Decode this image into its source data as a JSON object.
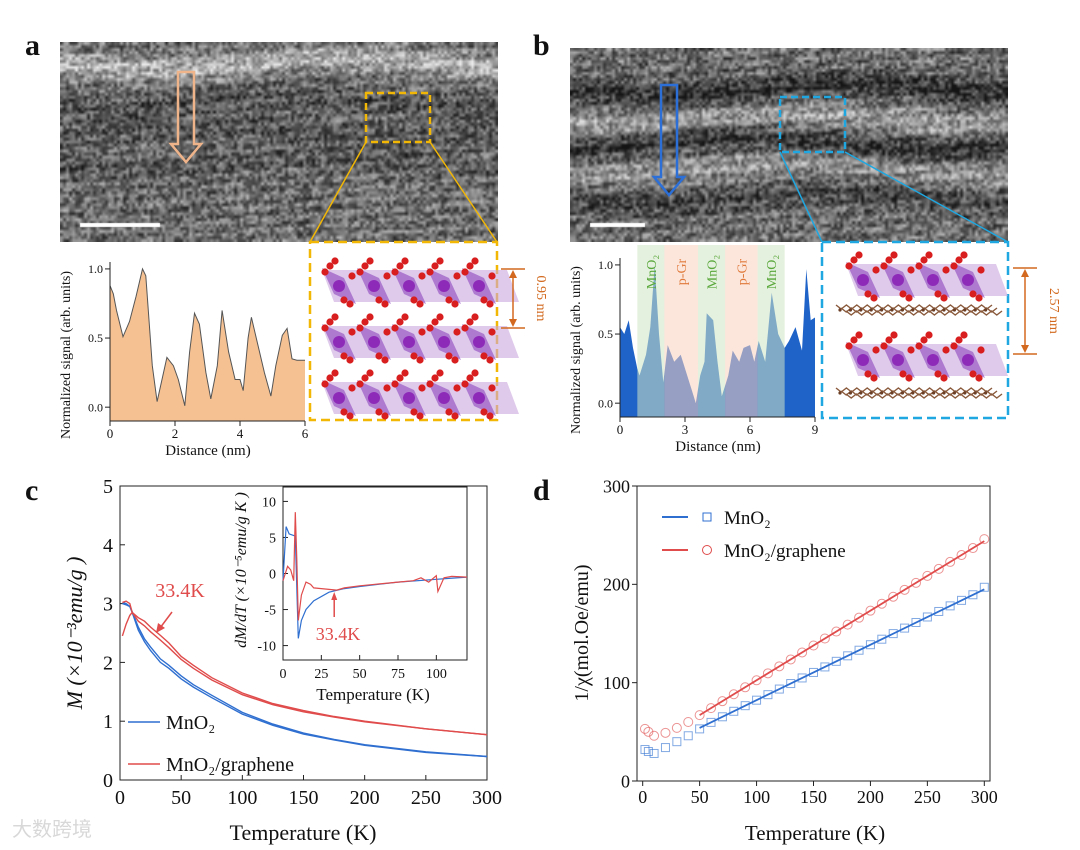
{
  "panels": {
    "a": {
      "label": "a",
      "tem_arrow_color": "#f0b48a",
      "zoom_box_color": "#f2b705",
      "spacing_label": "0.95 nm",
      "spacing_color": "#d2691e"
    },
    "b": {
      "label": "b",
      "tem_arrow_color": "#2c6fd6",
      "zoom_box_color": "#1ea7e0",
      "spacing_label": "2.57 nm",
      "spacing_color": "#d2691e"
    },
    "c": {
      "label": "c"
    },
    "d": {
      "label": "d"
    }
  },
  "colors": {
    "mno2": "#2f6fd0",
    "graphene": "#e04b4b",
    "profile_a_fill": "#f5c193",
    "profile_b_fill": "#1f63c8",
    "band_mno2": "#cfe6c4",
    "band_pgr": "#f9d2bd",
    "band_mno2_text": "#5aa83c",
    "band_pgr_text": "#e07a3c"
  },
  "watermark": "大数跨境",
  "chart_data": [
    {
      "id": "profile_a",
      "type": "area",
      "xlabel": "Distance (nm)",
      "ylabel": "Normalized signal (arb. units)",
      "xlim": [
        0,
        6
      ],
      "ylim": [
        -0.1,
        1.05
      ],
      "xticks": [
        "0",
        "2",
        "4",
        "6"
      ],
      "yticks": [
        "0.0",
        "0.5",
        "1.0"
      ],
      "x": [
        0,
        0.1,
        0.2,
        0.4,
        0.6,
        0.8,
        1.0,
        1.1,
        1.3,
        1.45,
        1.6,
        1.75,
        1.95,
        2.1,
        2.3,
        2.45,
        2.6,
        2.75,
        2.95,
        3.1,
        3.3,
        3.45,
        3.65,
        3.85,
        4.0,
        4.1,
        4.25,
        4.35,
        4.55,
        4.75,
        4.95,
        5.1,
        5.3,
        5.45,
        5.6,
        5.75,
        6.0
      ],
      "y": [
        0.88,
        0.82,
        0.7,
        0.51,
        0.62,
        0.8,
        1.0,
        0.95,
        0.3,
        0.04,
        0.2,
        0.36,
        0.3,
        0.2,
        0.01,
        0.4,
        0.68,
        0.6,
        0.25,
        0.06,
        0.3,
        0.7,
        0.4,
        0.2,
        0.2,
        0.12,
        0.5,
        0.65,
        0.45,
        0.25,
        0.08,
        0.3,
        0.52,
        0.57,
        0.35,
        0.34,
        0.34
      ]
    },
    {
      "id": "profile_b",
      "type": "area",
      "xlabel": "Distance (nm)",
      "ylabel": "Normalized signal (arb. units)",
      "xlim": [
        0,
        9
      ],
      "ylim": [
        -0.1,
        1.05
      ],
      "xticks": [
        "0",
        "3",
        "6",
        "9"
      ],
      "yticks": [
        "0.0",
        "0.5",
        "1.0"
      ],
      "bands": [
        {
          "label": "MnO₂",
          "kind": "mno2",
          "from": 0.8,
          "to": 2.05
        },
        {
          "label": "p-Gr",
          "kind": "pgr",
          "from": 2.05,
          "to": 3.6
        },
        {
          "label": "MnO₂",
          "kind": "mno2",
          "from": 3.6,
          "to": 4.85
        },
        {
          "label": "p-Gr",
          "kind": "pgr",
          "from": 4.85,
          "to": 6.35
        },
        {
          "label": "MnO₂",
          "kind": "mno2",
          "from": 6.35,
          "to": 7.6
        }
      ],
      "x": [
        0,
        0.2,
        0.4,
        0.6,
        0.8,
        0.9,
        1.2,
        1.4,
        1.6,
        1.8,
        2.0,
        2.2,
        2.5,
        2.8,
        3.1,
        3.4,
        3.5,
        3.7,
        3.9,
        4.0,
        4.3,
        4.5,
        4.7,
        5.0,
        5.2,
        5.5,
        5.7,
        6.0,
        6.2,
        6.4,
        6.7,
        7.0,
        7.3,
        7.6,
        7.8,
        8.1,
        8.4,
        8.6,
        8.8,
        9.0
      ],
      "y": [
        0.55,
        0.5,
        0.6,
        0.4,
        0.25,
        0.2,
        0.35,
        0.55,
        1.0,
        0.5,
        0.15,
        0.42,
        0.3,
        0.35,
        0.2,
        0.05,
        0.0,
        0.2,
        0.3,
        0.65,
        0.6,
        0.3,
        0.05,
        0.2,
        0.38,
        0.3,
        0.4,
        0.42,
        0.3,
        0.45,
        0.3,
        0.8,
        0.5,
        0.4,
        0.45,
        0.55,
        0.38,
        0.97,
        0.6,
        0.62
      ]
    },
    {
      "id": "panel_c",
      "type": "line",
      "xlabel": "Temperature (K)",
      "ylabel": "M (×10⁻³emu/g )",
      "xlim": [
        0,
        300
      ],
      "ylim": [
        0,
        5
      ],
      "xticks": [
        "0",
        "50",
        "100",
        "150",
        "200",
        "250",
        "300"
      ],
      "yticks": [
        "0",
        "1",
        "2",
        "3",
        "4",
        "5"
      ],
      "annotation": "33.4K",
      "legend_position": "bottom-left",
      "x": [
        2,
        5,
        8,
        10,
        15,
        20,
        25,
        33,
        40,
        50,
        60,
        75,
        100,
        125,
        150,
        175,
        200,
        250,
        300
      ],
      "series": [
        {
          "name": "MnO₂",
          "color_key": "mno2",
          "zfc": [
            3.0,
            2.98,
            2.95,
            2.85,
            2.55,
            2.35,
            2.2,
            2.0,
            1.9,
            1.72,
            1.58,
            1.4,
            1.12,
            0.93,
            0.78,
            0.68,
            0.59,
            0.47,
            0.4
          ],
          "fc": [
            3.02,
            3.0,
            2.95,
            2.86,
            2.6,
            2.4,
            2.26,
            2.06,
            1.95,
            1.77,
            1.62,
            1.44,
            1.15,
            0.95,
            0.8,
            0.69,
            0.6,
            0.48,
            0.4
          ]
        },
        {
          "name": "MnO₂/graphene",
          "color_key": "graphene",
          "zfc": [
            2.45,
            2.65,
            2.8,
            2.85,
            2.7,
            2.62,
            2.52,
            2.38,
            2.25,
            2.05,
            1.9,
            1.7,
            1.45,
            1.28,
            1.16,
            1.07,
            0.99,
            0.87,
            0.77
          ],
          "fc": [
            3.02,
            3.04,
            3.0,
            2.85,
            2.76,
            2.7,
            2.6,
            2.46,
            2.33,
            2.1,
            1.95,
            1.74,
            1.48,
            1.3,
            1.18,
            1.08,
            1.0,
            0.87,
            0.77
          ]
        }
      ]
    },
    {
      "id": "panel_c_inset",
      "type": "line",
      "xlabel": "Temperature (K)",
      "ylabel": "dM/dT (×10⁻⁵emu/g K )",
      "xlim": [
        0,
        120
      ],
      "ylim": [
        -12,
        12
      ],
      "xticks": [
        "0",
        "25",
        "50",
        "75",
        "100"
      ],
      "yticks": [
        "-10",
        "-5",
        "0",
        "5",
        "10"
      ],
      "annotation": "33.4K",
      "annotation_x": 33.4,
      "series": [
        {
          "name": "MnO₂",
          "color_key": "mno2",
          "x": [
            0,
            2,
            4,
            8,
            9,
            10,
            12,
            15,
            20,
            30,
            40,
            50,
            75,
            100,
            120
          ],
          "y": [
            -1,
            6.5,
            5.5,
            5.2,
            -2,
            -9,
            -6.5,
            -5,
            -3.8,
            -2.6,
            -2.1,
            -1.8,
            -1.2,
            -0.8,
            -0.5
          ]
        },
        {
          "name": "MnO₂/graphene",
          "color_key": "graphene",
          "x": [
            0,
            3,
            5,
            7,
            8,
            9,
            10,
            12,
            15,
            18,
            20,
            25,
            30,
            35,
            40,
            50,
            60,
            75,
            85,
            90,
            95,
            100,
            101,
            105,
            110,
            120
          ],
          "y": [
            -1,
            1,
            0.5,
            -1,
            8.5,
            2,
            -6.5,
            -3,
            -1.2,
            -1.5,
            -2,
            -2.1,
            -2.2,
            -2.3,
            -2,
            -1.7,
            -1.5,
            -1.2,
            -1,
            -0.6,
            -1.2,
            -0.3,
            -2.5,
            -0.6,
            -0.4,
            -0.5
          ]
        }
      ]
    },
    {
      "id": "panel_d",
      "type": "scatter",
      "xlabel": "Temperature (K)",
      "ylabel": "1/χ(mol.Oe/emu)",
      "xlim": [
        -5,
        305
      ],
      "ylim": [
        0,
        300
      ],
      "xticks": [
        "0",
        "50",
        "100",
        "150",
        "200",
        "250",
        "300"
      ],
      "yticks": [
        "0",
        "100",
        "200",
        "300"
      ],
      "legend_position": "top-left",
      "x": [
        2,
        5,
        10,
        20,
        30,
        40,
        50,
        60,
        70,
        80,
        90,
        100,
        110,
        120,
        130,
        140,
        150,
        160,
        170,
        180,
        190,
        200,
        210,
        220,
        230,
        240,
        250,
        260,
        270,
        280,
        290,
        300
      ],
      "series": [
        {
          "name": "MnO₂",
          "color_key": "mno2",
          "marker": "square",
          "y": [
            32,
            30,
            28,
            34,
            40,
            46,
            53,
            59.6,
            65.3,
            70.9,
            76.6,
            82.2,
            87.8,
            93.5,
            99.1,
            104.8,
            110.4,
            116,
            121.7,
            127.3,
            133,
            138.6,
            144.2,
            149.9,
            155.5,
            161.2,
            166.8,
            172.4,
            178.1,
            183.7,
            189.4,
            197
          ],
          "fit": {
            "x": [
              50,
              300
            ],
            "y": [
              54,
              195
            ]
          }
        },
        {
          "name": "MnO₂/graphene",
          "color_key": "graphene",
          "marker": "circle",
          "y": [
            53,
            50,
            46,
            49,
            54,
            60,
            67,
            74.1,
            81.2,
            88.2,
            95.3,
            102.4,
            109.5,
            116.6,
            123.6,
            130.7,
            137.8,
            144.9,
            152,
            159,
            166.1,
            173.2,
            180.3,
            187.4,
            194.4,
            201.5,
            208.6,
            215.7,
            222.8,
            229.8,
            236.9,
            246
          ],
          "fit": {
            "x": [
              50,
              300
            ],
            "y": [
              67,
              244
            ]
          }
        }
      ]
    }
  ]
}
